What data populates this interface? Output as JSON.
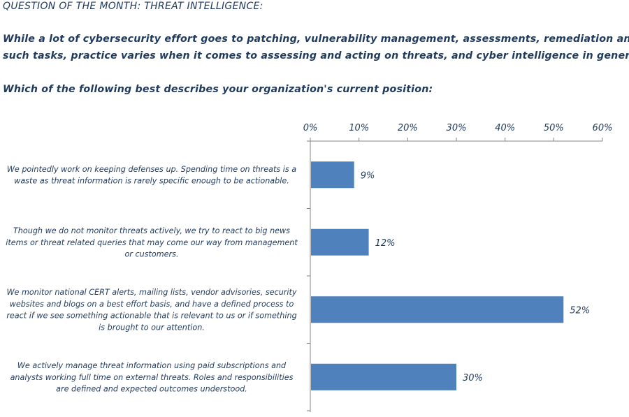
{
  "header": {
    "title": "QUESTION OF THE MONTH: THREAT INTELLIGENCE:",
    "intro_line1": "While a lot of cybersecurity effort goes to patching, vulnerability management, assessments, remediation and",
    "intro_line2": "such tasks, practice varies when it comes to assessing and acting on threats, and cyber intelligence in general.",
    "question": "Which of the following best describes your organization's current position:"
  },
  "colors": {
    "bar": "#4f81bd",
    "text": "#1f3a5f",
    "axis": "#868686"
  },
  "chart_data": {
    "type": "bar",
    "orientation": "horizontal",
    "categories": [
      [
        "We pointedly work on keeping defenses up.  Spending time on threats is a",
        "waste as threat information is rarely specific enough to be actionable."
      ],
      [
        "Though we do not monitor threats actively, we try to react to big news",
        "items or threat related queries that may come our way from management",
        "or customers."
      ],
      [
        "We monitor national CERT alerts, mailing lists, vendor advisories, security",
        "websites and blogs on a best effort basis, and have a defined process to",
        "react if we see something actionable that is relevant to us or if something",
        "is brought to our attention."
      ],
      [
        "We actively manage threat information using paid subscriptions and",
        "analysts working full time on external threats.  Roles and responsibilities",
        "are defined and expected outcomes understood."
      ]
    ],
    "values": [
      9,
      12,
      52,
      30
    ],
    "data_labels": [
      "9%",
      "12%",
      "52%",
      "30%"
    ],
    "xlim": [
      0,
      60
    ],
    "ticks": [
      0,
      10,
      20,
      30,
      40,
      50,
      60
    ],
    "tick_labels": [
      "0%",
      "10%",
      "20%",
      "30%",
      "40%",
      "50%",
      "60%"
    ],
    "axis_position": "top",
    "grid": false,
    "legend": "none"
  }
}
